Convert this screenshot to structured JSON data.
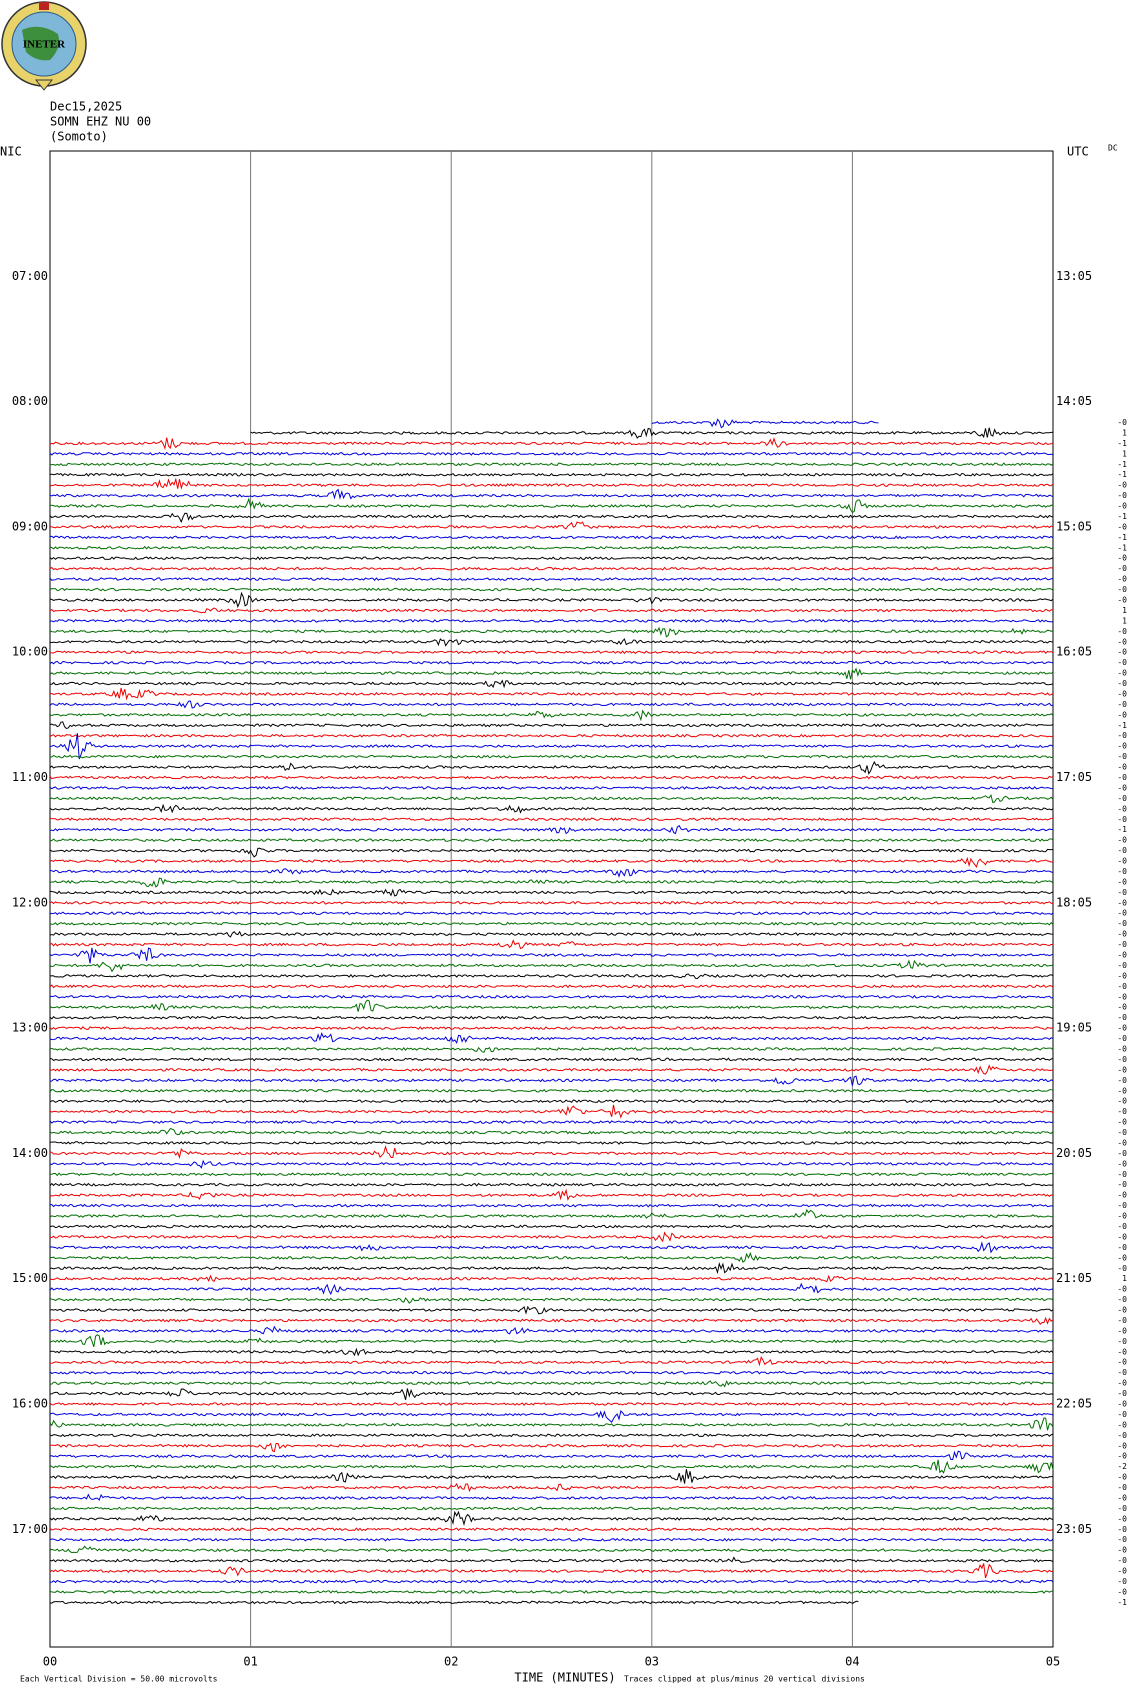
{
  "logo": "INETER",
  "header": {
    "date": "Dec15,2025",
    "station": "SOMN EHZ NU 00",
    "location": "(Somoto)"
  },
  "left_label": "NIC",
  "right_label": "UTC",
  "dc_label": "DC",
  "left_times": [
    "07:00",
    "08:00",
    "09:00",
    "10:00",
    "11:00",
    "12:00",
    "13:00",
    "14:00",
    "15:00",
    "16:00",
    "17:00"
  ],
  "right_times": [
    "13:05",
    "14:05",
    "15:05",
    "16:05",
    "17:05",
    "18:05",
    "19:05",
    "20:05",
    "21:05",
    "22:05",
    "23:05"
  ],
  "x_ticks": [
    "00",
    "01",
    "02",
    "03",
    "04",
    "05"
  ],
  "x_label": "TIME (MINUTES)",
  "footer_left": "Each Vertical Division =   50.00 microvolts",
  "footer_right": "Traces clipped at plus/minus 20 vertical divisions",
  "offsets": [
    "-0",
    "1",
    "-1",
    "1",
    "-1",
    "-1",
    "-0",
    "-0",
    "-0",
    "-1",
    "-0",
    "-1",
    "-1",
    "-0",
    "-0",
    "-0",
    "-0",
    "-0",
    "1",
    "1",
    "-0",
    "-0",
    "-0",
    "-0",
    "-0",
    "-0",
    "-0",
    "-0",
    "-0",
    "-1",
    "-0",
    "-0",
    "-0",
    "-0",
    "-0",
    "-0",
    "-0",
    "-0",
    "-0",
    "-1",
    "-0",
    "-0",
    "-0",
    "-0",
    "-0",
    "-0",
    "-0",
    "-0",
    "-0",
    "-0",
    "-0",
    "-0",
    "-0",
    "-0",
    "-0",
    "-0",
    "-0",
    "-0",
    "-0",
    "-0",
    "-0",
    "-0",
    "-0",
    "-0",
    "-0",
    "-0",
    "-0",
    "-0",
    "-0",
    "-0",
    "-0",
    "-0",
    "-0",
    "-0",
    "-0",
    "-0",
    "-0",
    "-0",
    "-0",
    "-0",
    "-0",
    "-0",
    "1",
    "-0",
    "-0",
    "-0",
    "-0",
    "-0",
    "-0",
    "-0",
    "-0",
    "-0",
    "-0",
    "-0",
    "-0",
    "-0",
    "-0",
    "-0",
    "-0",
    "-0",
    "-2",
    "-0",
    "-0",
    "-0",
    "-0",
    "-0",
    "-0",
    "-0",
    "-0",
    "-0",
    "-0",
    "-0",
    "-0",
    "-1"
  ]
}
